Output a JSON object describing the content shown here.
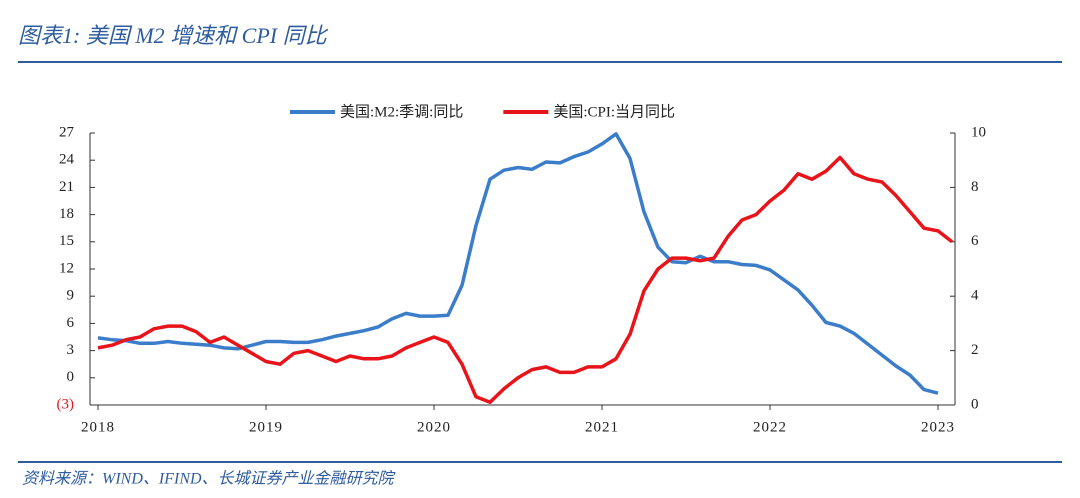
{
  "chart_data": {
    "type": "line",
    "title": "图表1:  美国 M2 增速和 CPI 同比",
    "source": "资料来源：WIND、IFIND、长城证券产业金融研究院",
    "categories": [
      "2018",
      null,
      null,
      null,
      null,
      null,
      null,
      null,
      null,
      null,
      null,
      null,
      "2019",
      null,
      null,
      null,
      null,
      null,
      null,
      null,
      null,
      null,
      null,
      null,
      "2020",
      null,
      null,
      null,
      null,
      null,
      null,
      null,
      null,
      null,
      null,
      null,
      "2021",
      null,
      null,
      null,
      null,
      null,
      null,
      null,
      null,
      null,
      null,
      null,
      "2022",
      null,
      null,
      null,
      null,
      null,
      null,
      null,
      null,
      null,
      null,
      null,
      "2023",
      null
    ],
    "series": [
      {
        "name": "美国:M2:季调:同比",
        "color": "#3b7dc9",
        "axis": "y",
        "values": [
          4.4,
          4.2,
          4.1,
          3.8,
          3.8,
          4.0,
          3.8,
          3.7,
          3.6,
          3.3,
          3.2,
          3.6,
          4.0,
          4.0,
          3.9,
          3.9,
          4.2,
          4.6,
          4.9,
          5.2,
          5.6,
          6.5,
          7.1,
          6.8,
          6.8,
          6.9,
          10.2,
          16.8,
          21.9,
          22.9,
          23.2,
          23.0,
          23.8,
          23.7,
          24.4,
          24.9,
          25.8,
          26.9,
          24.2,
          18.3,
          14.4,
          12.8,
          12.7,
          13.4,
          12.8,
          12.8,
          12.5,
          12.4,
          11.9,
          10.8,
          9.7,
          8.0,
          6.1,
          5.7,
          4.9,
          3.7,
          2.5,
          1.3,
          0.3,
          -1.3,
          -1.7,
          null
        ]
      },
      {
        "name": "美国:CPI:当月同比",
        "color": "#e8141a",
        "axis": "y2",
        "values": [
          2.1,
          2.2,
          2.4,
          2.5,
          2.8,
          2.9,
          2.9,
          2.7,
          2.3,
          2.5,
          2.2,
          1.9,
          1.6,
          1.5,
          1.9,
          2.0,
          1.8,
          1.6,
          1.8,
          1.7,
          1.7,
          1.8,
          2.1,
          2.3,
          2.5,
          2.3,
          1.5,
          0.3,
          0.1,
          0.6,
          1.0,
          1.3,
          1.4,
          1.2,
          1.2,
          1.4,
          1.4,
          1.7,
          2.6,
          4.2,
          5.0,
          5.4,
          5.4,
          5.3,
          5.4,
          6.2,
          6.8,
          7.0,
          7.5,
          7.9,
          8.5,
          8.3,
          8.6,
          9.1,
          8.5,
          8.3,
          8.2,
          7.7,
          7.1,
          6.5,
          6.4,
          6.0
        ]
      }
    ],
    "ylim": [
      -3,
      27
    ],
    "yticks": [
      {
        "value": -3,
        "label": "(3)"
      },
      0,
      3,
      6,
      9,
      12,
      15,
      18,
      21,
      24,
      27
    ],
    "y2lim": [
      0,
      10
    ],
    "y2ticks": [
      0,
      2,
      4,
      6,
      8,
      10
    ],
    "legend": "top"
  }
}
